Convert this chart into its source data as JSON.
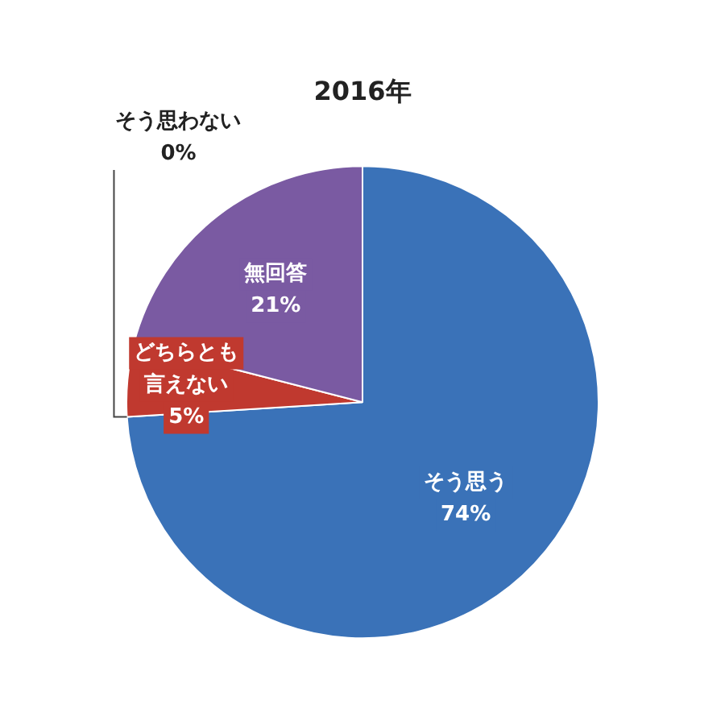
{
  "chart_data": {
    "type": "pie",
    "title": "2016年",
    "categories": [
      "そう思う",
      "そう思わない",
      "どちらとも言えない",
      "無回答"
    ],
    "values": [
      74,
      0,
      5,
      21
    ],
    "colors": [
      "#3a72b8",
      "#6a9a3a",
      "#c0392f",
      "#7a5aa2"
    ],
    "value_labels": [
      "74%",
      "0%",
      "5%",
      "21%"
    ],
    "legend": false
  }
}
